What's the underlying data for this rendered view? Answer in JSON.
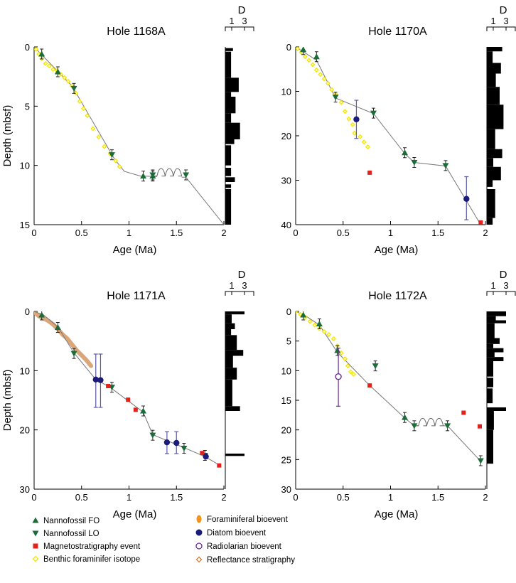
{
  "legend": [
    {
      "label": "Nannofossil FO",
      "marker": "triangle-up",
      "color": "#1e6b3a"
    },
    {
      "label": "Nannofossil LO",
      "marker": "triangle-down",
      "color": "#1e6b3a"
    },
    {
      "label": "Magnetostratigraphy event",
      "marker": "square",
      "color": "#e32219"
    },
    {
      "label": "Benthic foraminifer isotope",
      "marker": "diamond-open",
      "color": "#f2e600"
    },
    {
      "label": "Foraminiferal bioevent",
      "marker": "ellipse",
      "color": "#f7941d"
    },
    {
      "label": "Diatom bioevent",
      "marker": "circle",
      "color": "#1b1b7a"
    },
    {
      "label": "Radiolarian bioevent",
      "marker": "circle-open",
      "color": "#6b2c91"
    },
    {
      "label": "Reflectance stratigraphy",
      "marker": "diamond-open",
      "color": "#e07b39"
    }
  ],
  "chart_data": [
    {
      "type": "scatter",
      "title": "Hole 1168A",
      "xlabel": "Age (Ma)",
      "ylabel": "Depth (mbsf)",
      "xlim": [
        0,
        2
      ],
      "ylim": [
        0,
        15
      ],
      "xticks": [
        "0",
        "0.5",
        "1",
        "1.5",
        "2"
      ],
      "yticks": [
        "0",
        "5",
        "10",
        "15"
      ],
      "D_label": "D",
      "D_ticks": [
        "1",
        "3"
      ],
      "age_depth_line": [
        [
          0,
          0
        ],
        [
          0.4,
          3.3
        ],
        [
          0.85,
          9.5
        ],
        [
          0.95,
          10.5
        ],
        [
          1.12,
          10.9
        ],
        [
          1.6,
          11.0
        ],
        [
          2.0,
          15.0
        ]
      ],
      "unconformity": [
        1.25,
        1.6,
        10.9
      ],
      "nannofossil_fo": [
        [
          0.08,
          0.6
        ],
        [
          0.25,
          2.1
        ],
        [
          1.15,
          10.9
        ],
        [
          1.25,
          10.9
        ]
      ],
      "nannofossil_lo": [
        [
          0.42,
          3.5
        ],
        [
          0.82,
          9.1
        ],
        [
          1.25,
          10.8
        ],
        [
          1.6,
          10.8
        ]
      ],
      "magnetostratigraphy": [],
      "benthic_isotope": [
        [
          0.02,
          0.2
        ],
        [
          0.05,
          0.6
        ],
        [
          0.08,
          1.0
        ],
        [
          0.12,
          1.4
        ],
        [
          0.16,
          1.6
        ],
        [
          0.2,
          1.9
        ],
        [
          0.24,
          2.0
        ],
        [
          0.28,
          2.3
        ],
        [
          0.32,
          2.6
        ],
        [
          0.36,
          2.9
        ],
        [
          0.4,
          3.3
        ],
        [
          0.44,
          3.9
        ],
        [
          0.48,
          4.6
        ],
        [
          0.52,
          5.2
        ],
        [
          0.56,
          5.8
        ],
        [
          0.62,
          6.9
        ],
        [
          0.68,
          7.6
        ],
        [
          0.74,
          8.4
        ],
        [
          0.8,
          9.0
        ],
        [
          0.86,
          9.6
        ],
        [
          0.9,
          10.1
        ]
      ],
      "diatom": [],
      "radiolarian": [],
      "reflectance": [],
      "D_bars": [
        [
          0.1,
          0.35,
          1.2
        ],
        [
          0.4,
          2.6,
          0.9
        ],
        [
          2.6,
          3.8,
          2.1
        ],
        [
          3.8,
          4.2,
          0.9
        ],
        [
          4.2,
          5.6,
          1.6
        ],
        [
          5.6,
          6.4,
          0.9
        ],
        [
          6.4,
          7.8,
          2.3
        ],
        [
          7.8,
          8.2,
          1.4
        ],
        [
          8.3,
          10.0,
          0.9
        ],
        [
          10.2,
          10.9,
          0.9
        ],
        [
          11.0,
          11.4,
          1.5
        ],
        [
          11.6,
          11.9,
          0.9
        ],
        [
          12.0,
          15.0,
          0.9
        ]
      ]
    },
    {
      "type": "scatter",
      "title": "Hole 1170A",
      "xlabel": "Age (Ma)",
      "ylabel": "",
      "xlim": [
        0,
        2
      ],
      "ylim": [
        0,
        40
      ],
      "xticks": [
        "0",
        "0.5",
        "1",
        "1.5",
        "2"
      ],
      "yticks": [
        "0",
        "10",
        "20",
        "30",
        "40"
      ],
      "D_label": "D",
      "D_ticks": [
        "1",
        "3"
      ],
      "age_depth_line": [
        [
          0,
          0
        ],
        [
          0.22,
          3.0
        ],
        [
          0.42,
          11.5
        ],
        [
          0.82,
          15.0
        ],
        [
          1.15,
          24.0
        ],
        [
          1.25,
          26.0
        ],
        [
          1.58,
          26.8
        ],
        [
          1.95,
          40.0
        ]
      ],
      "unconformity": null,
      "nannofossil_fo": [
        [
          0.08,
          0.6
        ],
        [
          0.22,
          2.2
        ],
        [
          1.15,
          23.8
        ]
      ],
      "nannofossil_lo": [
        [
          0.42,
          11.3
        ],
        [
          0.82,
          14.9
        ],
        [
          1.25,
          26.0
        ],
        [
          1.58,
          26.7
        ]
      ],
      "magnetostratigraphy": [
        [
          0.78,
          28.3
        ],
        [
          1.95,
          39.5
        ]
      ],
      "benthic_isotope": [
        [
          0.02,
          0.4
        ],
        [
          0.06,
          1.2
        ],
        [
          0.1,
          2.2
        ],
        [
          0.14,
          3.0
        ],
        [
          0.18,
          4.0
        ],
        [
          0.22,
          5.2
        ],
        [
          0.26,
          6.2
        ],
        [
          0.3,
          7.2
        ],
        [
          0.34,
          8.2
        ],
        [
          0.38,
          9.6
        ],
        [
          0.42,
          10.6
        ],
        [
          0.48,
          12.5
        ],
        [
          0.52,
          14.5
        ],
        [
          0.56,
          16.2
        ],
        [
          0.6,
          17.5
        ],
        [
          0.62,
          19.4
        ],
        [
          0.68,
          20.2
        ],
        [
          0.72,
          21.4
        ],
        [
          0.76,
          22.5
        ]
      ],
      "diatom": [
        [
          0.64,
          16.3,
          12.0,
          20.6
        ],
        [
          1.8,
          34.2,
          29.2,
          38.9
        ]
      ],
      "radiolarian": [],
      "reflectance": [],
      "D_bars": [
        [
          0,
          1,
          2.4
        ],
        [
          1,
          3.6,
          0.9
        ],
        [
          3.6,
          6,
          2.2
        ],
        [
          6,
          9,
          1.4
        ],
        [
          9,
          13,
          2.0
        ],
        [
          13,
          18.5,
          2.6
        ],
        [
          18.5,
          23,
          1.3
        ],
        [
          23,
          25,
          2.4
        ],
        [
          25,
          27,
          1.0
        ],
        [
          27,
          30,
          2.2
        ],
        [
          30,
          31.5,
          0.9
        ],
        [
          32,
          38.5,
          1.3
        ],
        [
          38.5,
          40,
          0.9
        ]
      ]
    },
    {
      "type": "scatter",
      "title": "Hole 1171A",
      "xlabel": "Age (Ma)",
      "ylabel": "Depth (mbsf)",
      "xlim": [
        0,
        2
      ],
      "ylim": [
        0,
        30
      ],
      "xticks": [
        "0",
        "0.5",
        "1",
        "1.5",
        "2"
      ],
      "yticks": [
        "0",
        "10",
        "20",
        "30"
      ],
      "D_label": "D",
      "D_ticks": [
        "1",
        "3"
      ],
      "age_depth_line": [
        [
          0,
          0
        ],
        [
          0.1,
          0.6
        ],
        [
          0.25,
          2.6
        ],
        [
          0.42,
          7.0
        ],
        [
          0.65,
          11.5
        ],
        [
          0.8,
          12.8
        ],
        [
          1.15,
          17.0
        ],
        [
          1.25,
          20.8
        ],
        [
          1.58,
          23.0
        ],
        [
          1.8,
          24.5
        ],
        [
          1.96,
          26.0
        ]
      ],
      "unconformity": null,
      "nannofossil_fo": [
        [
          0.08,
          0.6
        ],
        [
          0.25,
          2.7
        ],
        [
          1.15,
          16.8
        ]
      ],
      "nannofossil_lo": [
        [
          0.42,
          7.1
        ],
        [
          0.82,
          12.8
        ],
        [
          1.25,
          20.9
        ],
        [
          1.58,
          23.1
        ],
        [
          1.8,
          24.3
        ]
      ],
      "magnetostratigraphy": [
        [
          0.78,
          12.6
        ],
        [
          0.99,
          14.9
        ],
        [
          1.07,
          16.6
        ],
        [
          1.77,
          23.9
        ],
        [
          1.95,
          26.0
        ]
      ],
      "benthic_isotope": [],
      "diatom": [
        [
          0.65,
          11.5,
          7.2,
          16.2
        ],
        [
          0.7,
          11.6,
          7.2,
          16.2
        ],
        [
          1.4,
          22.1,
          20.3,
          24.0
        ],
        [
          1.5,
          22.2,
          20.3,
          24.0
        ],
        [
          1.81,
          24.5,
          24.2,
          24.8
        ]
      ],
      "radiolarian": [],
      "reflectance": [
        [
          0,
          0.1
        ],
        [
          0.05,
          0.8
        ],
        [
          0.1,
          1.2
        ],
        [
          0.15,
          1.6
        ],
        [
          0.2,
          2.2
        ],
        [
          0.25,
          3.0
        ],
        [
          0.3,
          3.9
        ],
        [
          0.35,
          4.6
        ],
        [
          0.4,
          5.6
        ],
        [
          0.45,
          6.6
        ],
        [
          0.5,
          7.4
        ],
        [
          0.55,
          8.2
        ],
        [
          0.6,
          9.2
        ]
      ],
      "D_bars": [
        [
          0,
          0.5,
          3.0
        ],
        [
          0.5,
          2.0,
          1.0
        ],
        [
          2.0,
          3.0,
          1.5
        ],
        [
          3.0,
          4.0,
          0.9
        ],
        [
          4.0,
          6.5,
          1.8
        ],
        [
          6.5,
          7.5,
          2.8
        ],
        [
          7.5,
          9.5,
          1.2
        ],
        [
          9.5,
          11.5,
          1.8
        ],
        [
          11.5,
          16.0,
          1.1
        ],
        [
          16.0,
          16.8,
          2.3
        ],
        [
          24.0,
          24.4,
          3.0
        ]
      ]
    },
    {
      "type": "scatter",
      "title": "Hole 1172A",
      "xlabel": "Age (Ma)",
      "ylabel": "",
      "xlim": [
        0,
        2
      ],
      "ylim": [
        0,
        30
      ],
      "xticks": [
        "0",
        "0.5",
        "1",
        "1.5",
        "2"
      ],
      "yticks": [
        "0",
        "5",
        "10",
        "15",
        "20",
        "25",
        "30"
      ],
      "D_label": "D",
      "D_ticks": [
        "1",
        "3"
      ],
      "age_depth_line": [
        [
          0,
          0
        ],
        [
          0.1,
          0.7
        ],
        [
          0.25,
          2.3
        ],
        [
          0.44,
          6.9
        ],
        [
          0.78,
          12.5
        ],
        [
          1.15,
          18.0
        ],
        [
          1.25,
          19.3
        ],
        [
          1.6,
          19.3
        ],
        [
          1.95,
          25.3
        ]
      ],
      "unconformity": [
        1.25,
        1.6,
        19.3
      ],
      "nannofossil_fo": [
        [
          0.08,
          0.6
        ],
        [
          0.25,
          2.1
        ],
        [
          0.44,
          6.6
        ],
        [
          1.15,
          17.9
        ]
      ],
      "nannofossil_lo": [
        [
          0.84,
          9.2
        ],
        [
          1.25,
          19.3
        ],
        [
          1.6,
          19.3
        ],
        [
          1.95,
          25.2
        ]
      ],
      "magnetostratigraphy": [
        [
          0.78,
          12.5
        ],
        [
          1.77,
          17.1
        ],
        [
          1.94,
          19.4
        ]
      ],
      "benthic_isotope": [
        [
          0,
          0
        ],
        [
          0.05,
          0.5
        ],
        [
          0.1,
          1.0
        ],
        [
          0.15,
          1.7
        ],
        [
          0.2,
          2.3
        ],
        [
          0.25,
          2.9
        ],
        [
          0.3,
          3.4
        ],
        [
          0.35,
          3.9
        ],
        [
          0.4,
          4.6
        ],
        [
          0.44,
          5.8
        ],
        [
          0.48,
          7.0
        ],
        [
          0.52,
          8.0
        ],
        [
          0.55,
          9.2
        ],
        [
          0.58,
          10.2
        ],
        [
          0.61,
          10.6
        ]
      ],
      "diatom": [],
      "radiolarian": [
        [
          0.45,
          11.0,
          6.2,
          16.0
        ]
      ],
      "reflectance": [],
      "D_bars": [
        [
          0,
          0.8,
          3.0
        ],
        [
          0.8,
          1.5,
          1.4
        ],
        [
          1.5,
          2.0,
          3.0
        ],
        [
          2.0,
          4.5,
          1.2
        ],
        [
          4.5,
          5.5,
          2.0
        ],
        [
          5.5,
          6.2,
          1.0
        ],
        [
          6.2,
          6.9,
          2.6
        ],
        [
          6.9,
          7.7,
          1.2
        ],
        [
          7.7,
          8.4,
          2.6
        ],
        [
          8.4,
          11.0,
          1.0
        ],
        [
          11.2,
          12.8,
          1.0
        ],
        [
          13.0,
          15.5,
          0.9
        ],
        [
          16.2,
          16.8,
          3.0
        ],
        [
          16.8,
          20.0,
          1.1
        ],
        [
          20.0,
          25.7,
          1.0
        ]
      ]
    }
  ]
}
